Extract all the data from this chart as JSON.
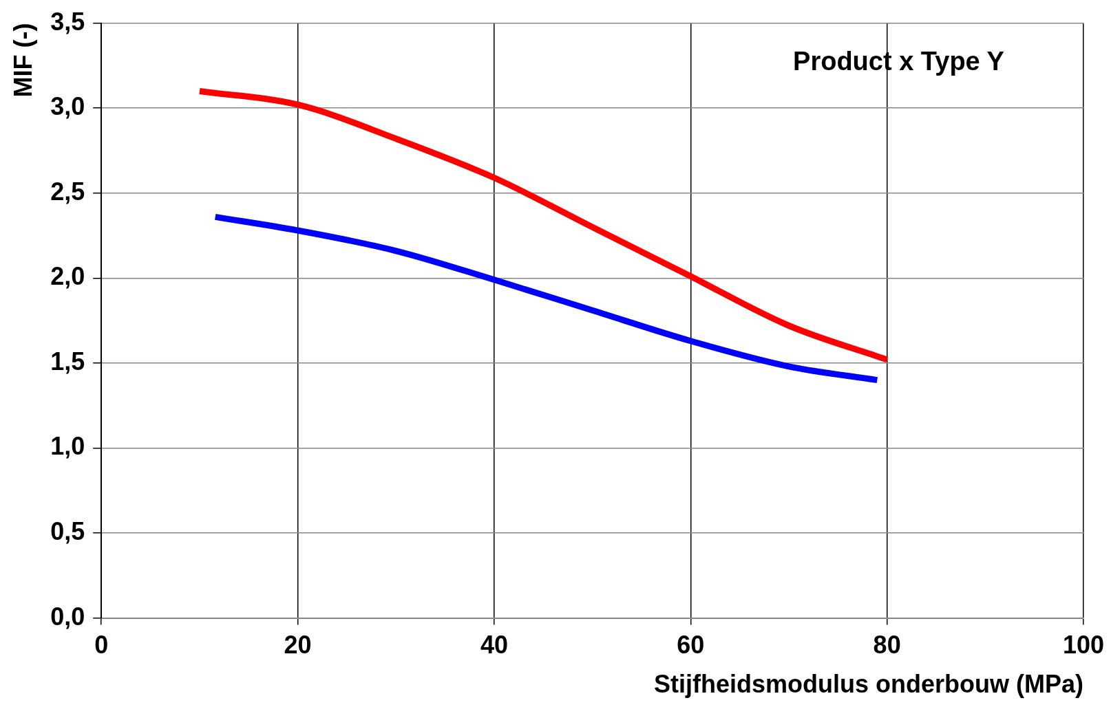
{
  "chart_data": {
    "type": "line",
    "xlabel": "Stijfheidsmodulus onderbouw (MPa)",
    "ylabel": "MIF (-)",
    "annotations": [
      "Product x Type Y"
    ],
    "xlim": [
      0,
      100
    ],
    "xticks": [
      0,
      20,
      40,
      60,
      80,
      100
    ],
    "ylim": [
      0,
      3.5
    ],
    "yticks": [
      {
        "value": 0,
        "label": "0,0"
      },
      {
        "value": 0.5,
        "label": "0,5"
      },
      {
        "value": 1,
        "label": "1,0"
      },
      {
        "value": 1.5,
        "label": "1,5"
      },
      {
        "value": 2,
        "label": "2,0"
      },
      {
        "value": 2.5,
        "label": "2,5"
      },
      {
        "value": 3,
        "label": "3,0"
      },
      {
        "value": 3.5,
        "label": "3,5"
      }
    ],
    "grid": true,
    "legend": false,
    "marker": "none",
    "line_style": "solid",
    "series": [
      {
        "color": "#ff0000",
        "x": [
          10,
          20,
          30,
          40,
          50,
          60,
          70,
          80
        ],
        "values": [
          3.1,
          3.02,
          2.82,
          2.59,
          2.3,
          2.01,
          1.72,
          1.52
        ]
      },
      {
        "color": "#0000ff",
        "x": [
          11.6,
          20,
          30,
          40,
          50,
          60,
          70,
          79
        ],
        "values": [
          2.36,
          2.28,
          2.16,
          1.99,
          1.81,
          1.63,
          1.48,
          1.4
        ]
      }
    ]
  }
}
